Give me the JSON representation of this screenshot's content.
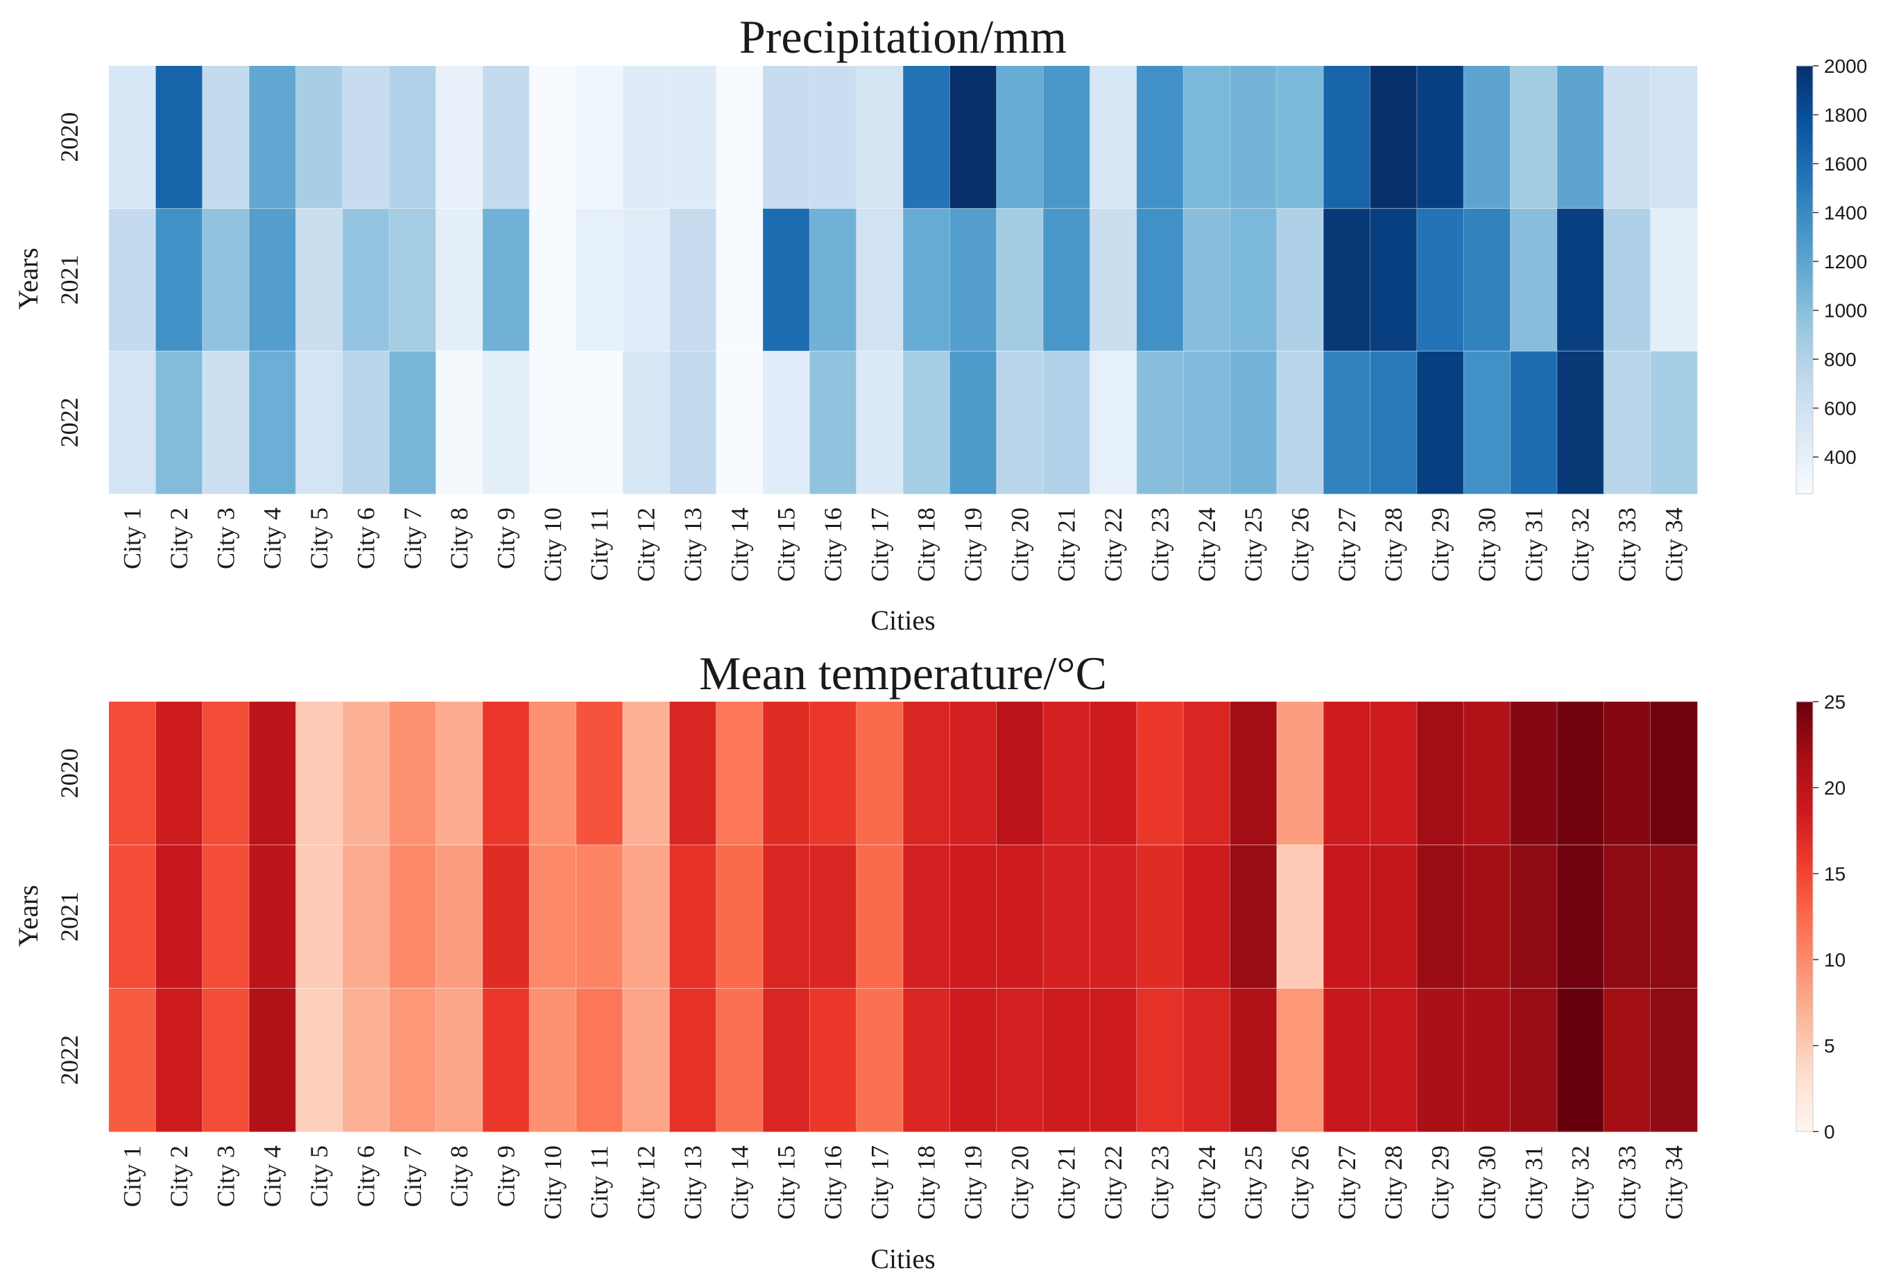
{
  "chart_data": [
    {
      "type": "heatmap",
      "title": "Precipitation/mm",
      "xlabel": "Cities",
      "ylabel": "Years",
      "colormap": "Blues",
      "vmin": 250,
      "vmax": 2000,
      "colorbar_ticks": [
        400,
        600,
        800,
        1000,
        1200,
        1400,
        1600,
        1800,
        2000
      ],
      "x": [
        "City 1",
        "City 2",
        "City 3",
        "City 4",
        "City 5",
        "City 6",
        "City 7",
        "City 8",
        "City 9",
        "City 10",
        "City 11",
        "City 12",
        "City 13",
        "City 14",
        "City 15",
        "City 16",
        "City 17",
        "City 18",
        "City 19",
        "City 20",
        "City 21",
        "City 22",
        "City 23",
        "City 24",
        "City 25",
        "City 26",
        "City 27",
        "City 28",
        "City 29",
        "City 30",
        "City 31",
        "City 32",
        "City 33",
        "City 34"
      ],
      "y": [
        "2020",
        "2021",
        "2022"
      ],
      "values": [
        [
          520,
          1650,
          700,
          1180,
          850,
          680,
          800,
          380,
          700,
          260,
          320,
          460,
          460,
          250,
          680,
          640,
          570,
          1550,
          2000,
          1150,
          1300,
          540,
          1350,
          1050,
          1080,
          1050,
          1650,
          2000,
          1900,
          1200,
          880,
          1200,
          620,
          580
        ],
        [
          700,
          1350,
          960,
          1250,
          650,
          950,
          870,
          410,
          1100,
          270,
          400,
          450,
          680,
          250,
          1600,
          1100,
          590,
          1150,
          1250,
          880,
          1300,
          650,
          1350,
          1000,
          1050,
          820,
          1950,
          1900,
          1550,
          1450,
          1000,
          1900,
          820,
          430
        ],
        [
          560,
          1020,
          620,
          1120,
          560,
          760,
          1060,
          280,
          430,
          260,
          260,
          520,
          700,
          250,
          450,
          960,
          500,
          860,
          1280,
          760,
          800,
          400,
          1000,
          1030,
          1080,
          760,
          1450,
          1500,
          1900,
          1350,
          1600,
          1950,
          760,
          860
        ]
      ]
    },
    {
      "type": "heatmap",
      "title": "Mean temperature/°C",
      "xlabel": "Cities",
      "ylabel": "Years",
      "colormap": "Reds",
      "vmin": 0,
      "vmax": 25,
      "colorbar_ticks": [
        0,
        5,
        10,
        15,
        20,
        25
      ],
      "x": [
        "City 1",
        "City 2",
        "City 3",
        "City 4",
        "City 5",
        "City 6",
        "City 7",
        "City 8",
        "City 9",
        "City 10",
        "City 11",
        "City 12",
        "City 13",
        "City 14",
        "City 15",
        "City 16",
        "City 17",
        "City 18",
        "City 19",
        "City 20",
        "City 21",
        "City 22",
        "City 23",
        "City 24",
        "City 25",
        "City 26",
        "City 27",
        "City 28",
        "City 29",
        "City 30",
        "City 31",
        "City 32",
        "City 33",
        "City 34"
      ],
      "y": [
        "2020",
        "2021",
        "2022"
      ],
      "values": [
        [
          14.5,
          18.5,
          14.5,
          20.0,
          5.0,
          7.0,
          9.5,
          7.5,
          16.0,
          9.5,
          14.0,
          7.0,
          17.5,
          11.5,
          17.0,
          16.0,
          12.5,
          17.5,
          18.0,
          20.0,
          18.0,
          18.5,
          16.0,
          17.5,
          22.0,
          8.5,
          18.5,
          18.5,
          22.0,
          21.0,
          23.5,
          24.5,
          23.5,
          24.5
        ],
        [
          14.5,
          19.0,
          14.5,
          20.0,
          5.0,
          7.5,
          10.0,
          8.5,
          17.0,
          10.0,
          10.5,
          8.0,
          16.5,
          12.5,
          17.5,
          17.5,
          12.5,
          18.0,
          18.5,
          18.5,
          18.0,
          18.0,
          17.0,
          18.5,
          22.5,
          5.0,
          19.0,
          19.5,
          22.5,
          22.0,
          23.0,
          24.5,
          23.0,
          23.0
        ],
        [
          13.5,
          18.5,
          14.5,
          21.0,
          4.5,
          7.0,
          9.0,
          8.0,
          16.0,
          9.5,
          11.5,
          8.0,
          16.5,
          12.0,
          17.5,
          16.0,
          12.0,
          17.5,
          18.5,
          18.0,
          18.5,
          18.5,
          16.5,
          17.5,
          21.0,
          9.0,
          19.0,
          19.0,
          21.5,
          21.5,
          22.5,
          25.0,
          22.0,
          23.0
        ]
      ]
    }
  ]
}
